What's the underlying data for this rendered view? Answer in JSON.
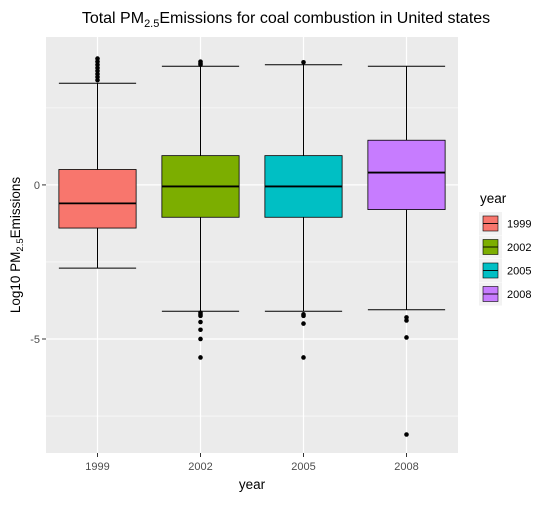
{
  "chart_data": {
    "type": "boxplot",
    "title": {
      "prefix": "Total PM",
      "subscript": "2.5",
      "suffix": "Emissions for coal combustion in United states"
    },
    "xlabel": "year",
    "ylabel": {
      "prefix": "Log10 PM",
      "subscript": "2.5",
      "suffix": "Emissions"
    },
    "categories": [
      "1999",
      "2002",
      "2005",
      "2008"
    ],
    "ylim": [
      -8.7,
      4.8
    ],
    "y_ticks": [
      {
        "value": -5,
        "label": "-5"
      },
      {
        "value": 0,
        "label": "0"
      }
    ],
    "y_minor_gridlines": [
      -7.5,
      -2.5,
      2.5
    ],
    "grid": true,
    "legend": {
      "title": "year",
      "placement": "right",
      "entries": [
        "1999",
        "2002",
        "2005",
        "2008"
      ]
    },
    "colors": {
      "1999": "#F8766D",
      "2002": "#7CAE00",
      "2005": "#00BFC4",
      "2008": "#C77CFF"
    },
    "boxes": [
      {
        "year": "1999",
        "whisker_low": -2.7,
        "q1": -1.4,
        "median": -0.6,
        "q3": 0.5,
        "whisker_high": 3.3,
        "outliers": [
          3.4,
          3.5,
          3.6,
          3.7,
          3.8,
          3.9,
          4.0,
          4.1
        ]
      },
      {
        "year": "2002",
        "whisker_low": -4.1,
        "q1": -1.05,
        "median": -0.05,
        "q3": 0.95,
        "whisker_high": 3.85,
        "outliers": [
          3.9,
          3.95,
          4.0,
          -4.15,
          -4.2,
          -4.25,
          -4.45,
          -4.7,
          -5.0,
          -5.6
        ]
      },
      {
        "year": "2005",
        "whisker_low": -4.1,
        "q1": -1.05,
        "median": -0.05,
        "q3": 0.95,
        "whisker_high": 3.9,
        "outliers": [
          3.98,
          -4.2,
          -4.25,
          -4.5,
          -5.6
        ]
      },
      {
        "year": "2008",
        "whisker_low": -4.05,
        "q1": -0.8,
        "median": 0.4,
        "q3": 1.45,
        "whisker_high": 3.85,
        "outliers": [
          -4.3,
          -4.4,
          -4.95,
          -8.1
        ]
      }
    ]
  }
}
